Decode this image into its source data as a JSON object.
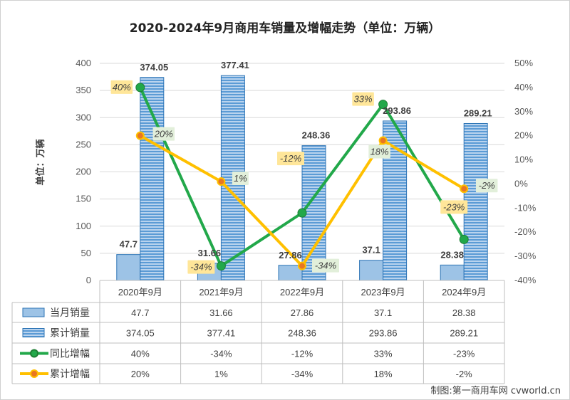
{
  "chart_data": {
    "type": "bar",
    "title": "2020-2024年9月商用车销量及增幅走势（单位：万辆）",
    "ylabel": "单位：万辆",
    "categories": [
      "2020年9月",
      "2021年9月",
      "2022年9月",
      "2023年9月",
      "2024年9月"
    ],
    "ylim": [
      0,
      400
    ],
    "yticks": [
      0,
      50,
      100,
      150,
      200,
      250,
      300,
      350,
      400
    ],
    "y2lim": [
      -40,
      50
    ],
    "y2ticks": [
      "-40%",
      "-30%",
      "-20%",
      "-10%",
      "0%",
      "10%",
      "20%",
      "30%",
      "40%",
      "50%"
    ],
    "bar_series": [
      {
        "name": "当月销量",
        "values": [
          47.7,
          31.66,
          27.86,
          37.1,
          28.38
        ],
        "labels": [
          "47.7",
          "31.66",
          "27.86",
          "37.1",
          "28.38"
        ],
        "color": "#9dc3e6"
      },
      {
        "name": "累计销量",
        "values": [
          374.05,
          377.41,
          248.36,
          293.86,
          289.21
        ],
        "labels": [
          "374.05",
          "377.41",
          "248.36",
          "293.86",
          "289.21"
        ],
        "color": "#5b9bd5"
      }
    ],
    "line_series": [
      {
        "name": "同比增幅",
        "values": [
          40,
          -34,
          -12,
          33,
          -23
        ],
        "labels": [
          "40%",
          "-34%",
          "-12%",
          "33%",
          "-23%"
        ],
        "color": "#22a84a",
        "label_bg": "#ffe699"
      },
      {
        "name": "累计增幅",
        "values": [
          20,
          1,
          -34,
          18,
          -2
        ],
        "labels": [
          "20%",
          "1%",
          "-34%",
          "18%",
          "-2%"
        ],
        "color": "#ffc000",
        "label_bg": "#e2efda"
      }
    ],
    "table": {
      "rows": [
        [
          "47.7",
          "31.66",
          "27.86",
          "37.1",
          "28.38"
        ],
        [
          "374.05",
          "377.41",
          "248.36",
          "293.86",
          "289.21"
        ],
        [
          "40%",
          "-34%",
          "-12%",
          "33%",
          "-23%"
        ],
        [
          "20%",
          "1%",
          "-34%",
          "18%",
          "-2%"
        ]
      ]
    },
    "source": "制图:第一商用车网 cvworld.cn"
  }
}
